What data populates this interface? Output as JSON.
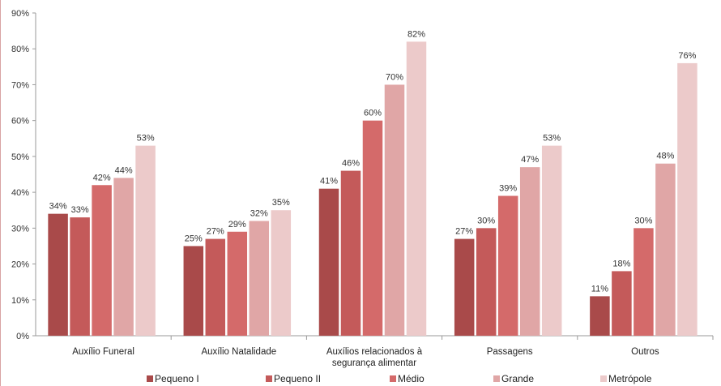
{
  "chart_data": {
    "type": "bar",
    "title": "",
    "xlabel": "",
    "ylabel": "",
    "ylim": [
      0,
      90
    ],
    "yticks": [
      0,
      10,
      20,
      30,
      40,
      50,
      60,
      70,
      80,
      90
    ],
    "ytick_labels": [
      "0%",
      "10%",
      "20%",
      "30%",
      "40%",
      "50%",
      "60%",
      "70%",
      "80%",
      "90%"
    ],
    "grid": false,
    "legend_position": "bottom",
    "categories": [
      [
        "Auxílio Funeral"
      ],
      [
        "Auxílio Natalidade"
      ],
      [
        "Auxílios relacionados à",
        "segurança alimentar"
      ],
      [
        "Passagens"
      ],
      [
        "Outros"
      ]
    ],
    "series": [
      {
        "name": "Pequeno I",
        "color": "#a94a4a",
        "values": [
          34,
          25,
          41,
          27,
          11
        ],
        "labels": [
          "34%",
          "25%",
          "41%",
          "27%",
          "11%"
        ]
      },
      {
        "name": "Pequeno II",
        "color": "#c45a5a",
        "values": [
          33,
          27,
          46,
          30,
          18
        ],
        "labels": [
          "33%",
          "27%",
          "46%",
          "30%",
          "18%"
        ]
      },
      {
        "name": "Médio",
        "color": "#d46a6a",
        "values": [
          42,
          29,
          60,
          39,
          30
        ],
        "labels": [
          "42%",
          "29%",
          "60%",
          "39%",
          "30%"
        ]
      },
      {
        "name": "Grande",
        "color": "#e0a6a6",
        "values": [
          44,
          32,
          70,
          47,
          48
        ],
        "labels": [
          "44%",
          "32%",
          "70%",
          "47%",
          "48%"
        ]
      },
      {
        "name": "Metrópole",
        "color": "#eccaca",
        "values": [
          53,
          35,
          82,
          53,
          76
        ],
        "labels": [
          "53%",
          "35%",
          "82%",
          "53%",
          "76%"
        ]
      }
    ]
  }
}
